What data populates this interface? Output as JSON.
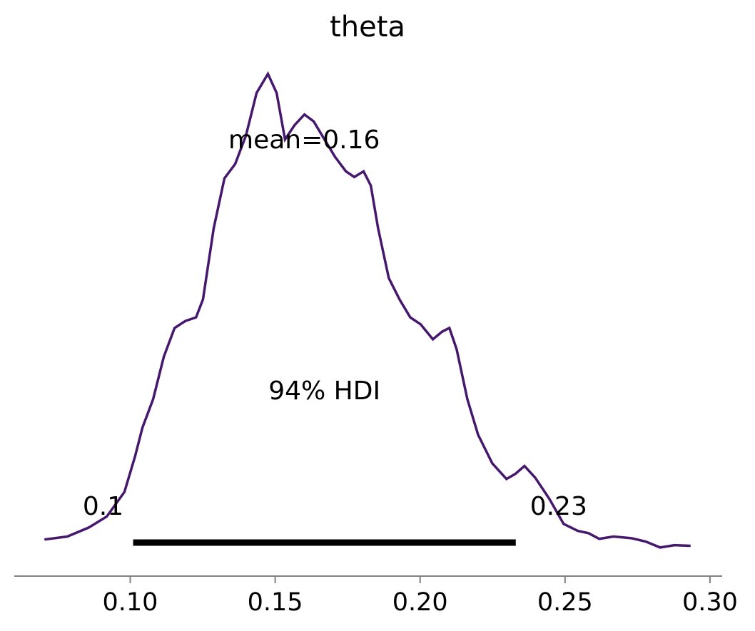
{
  "chart_data": {
    "type": "line",
    "title": "theta",
    "x": [
      0.0704,
      0.0783,
      0.0857,
      0.0919,
      0.098,
      0.1017,
      0.1042,
      0.1079,
      0.1116,
      0.1153,
      0.119,
      0.1227,
      0.1251,
      0.1288,
      0.1325,
      0.1362,
      0.1399,
      0.1436,
      0.1475,
      0.1505,
      0.1534,
      0.1567,
      0.1601,
      0.1633,
      0.167,
      0.1707,
      0.1744,
      0.1773,
      0.1805,
      0.183,
      0.1855,
      0.1892,
      0.1929,
      0.1966,
      0.2002,
      0.2044,
      0.2076,
      0.2101,
      0.2126,
      0.2163,
      0.22,
      0.2249,
      0.2298,
      0.2328,
      0.236,
      0.2397,
      0.2446,
      0.2495,
      0.2544,
      0.2581,
      0.2618,
      0.2667,
      0.2729,
      0.2778,
      0.2828,
      0.2877,
      0.2933
    ],
    "values": [
      0,
      0.09,
      0.36,
      0.69,
      1.43,
      2.51,
      3.36,
      4.22,
      5.5,
      6.36,
      6.57,
      6.68,
      7.22,
      9.36,
      10.86,
      11.29,
      12.14,
      13.43,
      14.0,
      13.43,
      12.03,
      12.46,
      12.78,
      12.57,
      12.03,
      11.5,
      11.07,
      10.9,
      11.07,
      10.64,
      9.36,
      7.86,
      7.22,
      6.68,
      6.47,
      6.02,
      6.25,
      6.36,
      5.72,
      4.22,
      3.15,
      2.29,
      1.82,
      1.97,
      2.21,
      1.86,
      1.22,
      0.47,
      0.26,
      0.19,
      0.02,
      0.09,
      0.04,
      -0.06,
      -0.24,
      -0.17,
      -0.19
    ],
    "color": "#45186d",
    "point_estimate": {
      "value": 0.16,
      "label": "mean=0.16"
    },
    "hdi_label": "94% HDI",
    "hdi": [
      0.101,
      0.233
    ],
    "hdi_value_labels": [
      "0.1",
      "0.23"
    ],
    "xlim": [
      0.06,
      0.3042
    ],
    "xticks": [
      {
        "value": 0.1,
        "label": "0.10"
      },
      0.15,
      {
        "value": 0.2,
        "label": "0.20"
      },
      0.25,
      {
        "value": 0.3,
        "label": "0.30"
      }
    ],
    "ylim": [
      -1.1,
      15
    ]
  }
}
